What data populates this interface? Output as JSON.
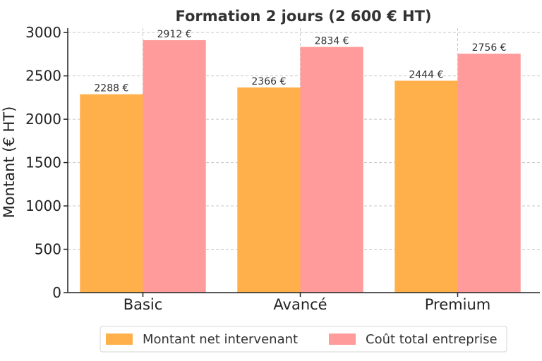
{
  "chart_data": {
    "type": "bar",
    "title": "Formation 2 jours (2 600 € HT)",
    "xlabel": "",
    "ylabel": "Montant (€ HT)",
    "categories": [
      "Basic",
      "Avancé",
      "Premium"
    ],
    "series": [
      {
        "name": "Montant net intervenant",
        "color": "#ffb04a",
        "values": [
          2288,
          2366,
          2444
        ],
        "labels": [
          "2288 €",
          "2366 €",
          "2444 €"
        ]
      },
      {
        "name": "Coût total entreprise",
        "color": "#ff9b9b",
        "values": [
          2912,
          2834,
          2756
        ],
        "labels": [
          "2912 €",
          "2834 €",
          "2756 €"
        ]
      }
    ],
    "ylim": [
      0,
      3050
    ],
    "yticks": [
      0,
      500,
      1000,
      1500,
      2000,
      2500,
      3000
    ],
    "ytick_labels": [
      "0",
      "500",
      "1000",
      "1500",
      "2000",
      "2500",
      "3000"
    ],
    "grid": true,
    "legend_position": "bottom-center"
  }
}
